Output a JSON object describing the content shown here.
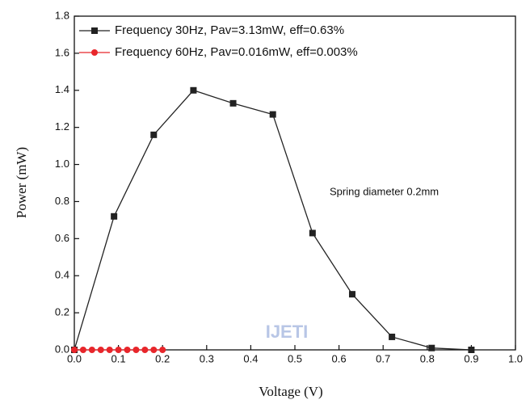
{
  "chart_data": {
    "type": "line",
    "xlabel": "Voltage (V)",
    "ylabel": "Power (mW)",
    "annotation": "Spring diameter 0.2mm",
    "watermark": "IJETI",
    "xlim": [
      0,
      1
    ],
    "ylim": [
      0,
      1.8
    ],
    "xticks": [
      {
        "value": 0,
        "label": "0.0"
      },
      0.1,
      0.2,
      0.3,
      0.4,
      0.5,
      0.6,
      0.7,
      0.8,
      0.9,
      {
        "value": 1,
        "label": "1.0"
      }
    ],
    "yticks": [
      {
        "value": 0,
        "label": "0.0"
      },
      0.2,
      0.4,
      0.6,
      0.8,
      {
        "value": 1,
        "label": "1.0"
      },
      1.2,
      1.4,
      1.6,
      1.8
    ],
    "legend": "upper left",
    "series": [
      {
        "name": "Frequency 30Hz, Pav=3.13mW, eff=0.63%",
        "color": "#222222",
        "marker": "square",
        "x": [
          0,
          0.09,
          0.18,
          0.27,
          0.36,
          0.45,
          0.54,
          0.63,
          0.72,
          0.81,
          0.9
        ],
        "values": [
          0,
          0.72,
          1.16,
          1.4,
          1.33,
          1.27,
          0.63,
          0.3,
          0.07,
          0.01,
          0
        ]
      },
      {
        "name": "Frequency 60Hz, Pav=0.016mW, eff=0.003%",
        "color": "#e8262b",
        "marker": "circle",
        "x": [
          0,
          0.02,
          0.04,
          0.06,
          0.08,
          0.1,
          0.12,
          0.14,
          0.16,
          0.18,
          0.2
        ],
        "values": [
          0,
          0,
          0,
          0,
          0,
          0,
          0,
          0,
          0,
          0,
          0
        ]
      }
    ]
  }
}
